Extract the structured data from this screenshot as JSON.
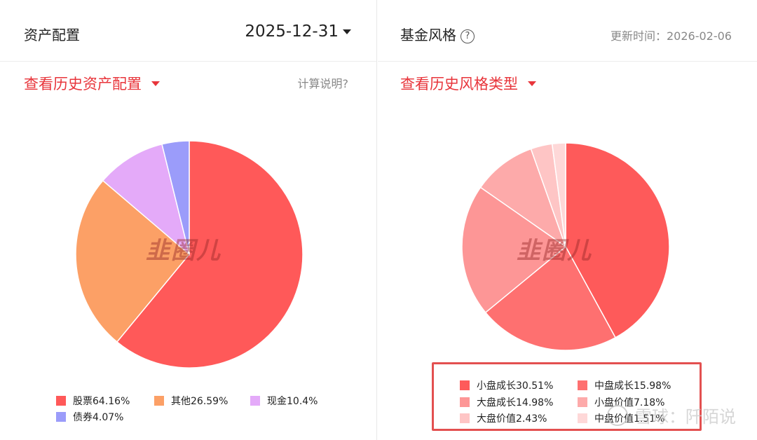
{
  "asset": {
    "title": "资产配置",
    "date": "2025-12-31",
    "history_link": "查看历史资产配置",
    "calc_note": "计算说明?",
    "watermark": "韭圈儿",
    "legend": [
      {
        "label": "股票64.16%"
      },
      {
        "label": "其他26.59%"
      },
      {
        "label": "现金10.4%"
      },
      {
        "label": "债券4.07%"
      }
    ]
  },
  "style": {
    "title": "基金风格",
    "help_icon": "question-circle-icon",
    "update_time": "更新时间：2026-02-06",
    "history_link": "查看历史风格类型",
    "watermark": "韭圈儿",
    "legend": [
      {
        "label": "小盘成长30.51%"
      },
      {
        "label": "中盘成长15.98%"
      },
      {
        "label": "大盘成长14.98%"
      },
      {
        "label": "小盘价值7.18%"
      },
      {
        "label": "大盘价值2.43%"
      },
      {
        "label": "中盘价值1.51%"
      }
    ]
  },
  "corner_watermark": "雪球：阡陌说",
  "chart_data": [
    {
      "type": "pie",
      "categories": [
        "股票",
        "其他",
        "现金",
        "债券"
      ],
      "values": [
        64.16,
        26.59,
        10.4,
        4.07
      ],
      "colors": [
        "#ff5959",
        "#fca066",
        "#e4aaf9",
        "#9b9cfa"
      ]
    },
    {
      "type": "pie",
      "categories": [
        "小盘成长",
        "中盘成长",
        "大盘成长",
        "小盘价值",
        "大盘价值",
        "中盘价值"
      ],
      "values": [
        30.51,
        15.98,
        14.98,
        7.18,
        2.43,
        1.51
      ],
      "colors": [
        "#fe5a5a",
        "#fe7070",
        "#fd9696",
        "#fdaaaa",
        "#fec5c5",
        "#fed8d8"
      ]
    }
  ]
}
